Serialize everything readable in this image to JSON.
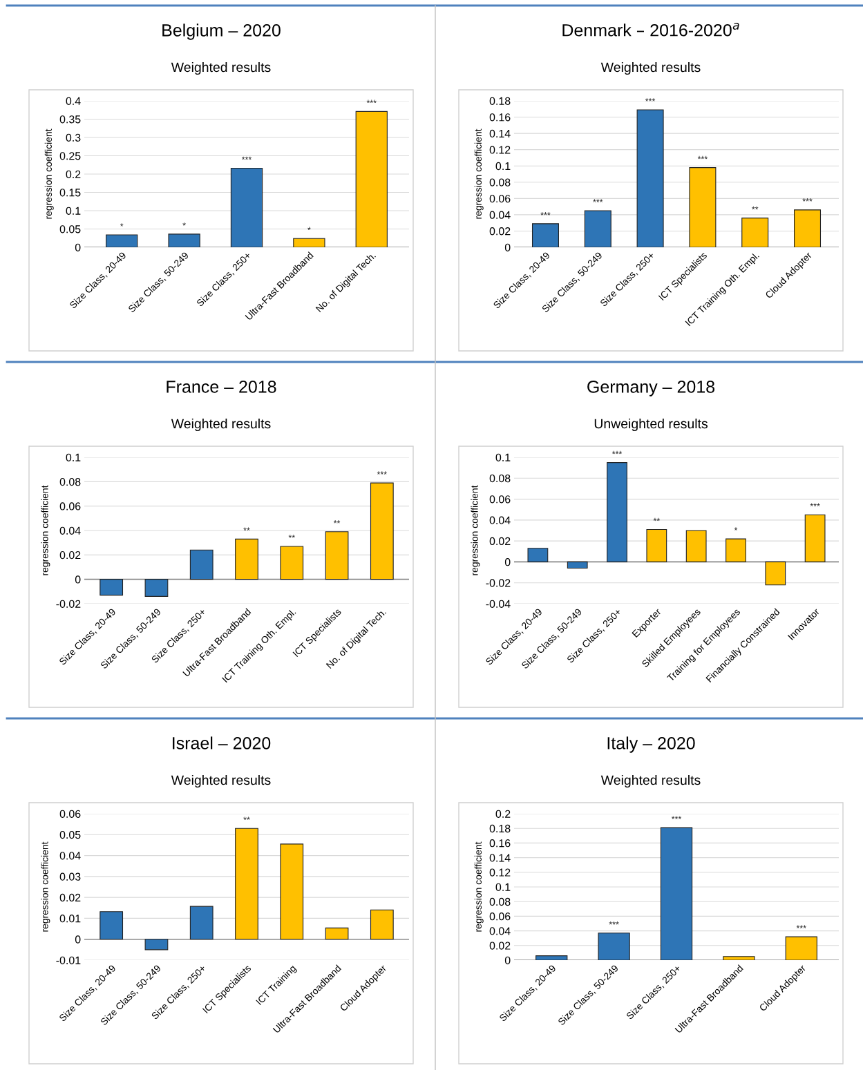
{
  "chart_data": [
    {
      "type": "bar",
      "title": "Belgium – 2020",
      "subtitle": "Weighted results",
      "ylabel": "regression coefficient",
      "categories": [
        "Size Class, 20-49",
        "Size Class, 50-249",
        "Size Class, 250+",
        "Ultra-Fast Broadband",
        "No. of Digital Tech."
      ],
      "values": [
        0.034,
        0.036,
        0.216,
        0.024,
        0.371
      ],
      "colors": [
        "#2e75b6",
        "#2e75b6",
        "#2e75b6",
        "#ffc000",
        "#ffc000"
      ],
      "value_labels": [
        "*",
        "*",
        "***",
        "*",
        "***"
      ],
      "ylim": [
        0,
        0.4
      ],
      "yticks": [
        0,
        0.05,
        0.1,
        0.15,
        0.2,
        0.25,
        0.3,
        0.35,
        0.4
      ],
      "grid": "y"
    },
    {
      "type": "bar",
      "title": "Denmark – 2016-2020$^{a}$",
      "subtitle": "Weighted results",
      "ylabel": "regression coefficient",
      "categories": [
        "Size Class, 20-49",
        "Size Class, 50-249",
        "Size Class, 250+",
        "ICT Specialists",
        "ICT Training Oth. Empl.",
        "Cloud Adopter"
      ],
      "values": [
        0.029,
        0.045,
        0.169,
        0.098,
        0.036,
        0.046
      ],
      "colors": [
        "#2e75b6",
        "#2e75b6",
        "#2e75b6",
        "#ffc000",
        "#ffc000",
        "#ffc000"
      ],
      "value_labels": [
        "***",
        "***",
        "***",
        "***",
        "**",
        "***"
      ],
      "ylim": [
        0,
        0.18
      ],
      "yticks": [
        0,
        0.02,
        0.04,
        0.06,
        0.08,
        0.1,
        0.12,
        0.14,
        0.16,
        0.18
      ],
      "grid": "y"
    },
    {
      "type": "bar",
      "title": "France – 2018",
      "subtitle": "Weighted results",
      "ylabel": "regression coefficient",
      "categories": [
        "Size Class, 20-49",
        "Size Class, 50-249",
        "Size Class, 250+",
        "Ultra-Fast Broadband",
        "ICT Training Oth. Empl.",
        "ICT Specialists",
        "No. of Digital Tech."
      ],
      "values": [
        -0.013,
        -0.014,
        0.024,
        0.033,
        0.027,
        0.039,
        0.079
      ],
      "colors": [
        "#2e75b6",
        "#2e75b6",
        "#2e75b6",
        "#ffc000",
        "#ffc000",
        "#ffc000",
        "#ffc000"
      ],
      "value_labels": [
        null,
        null,
        null,
        "**",
        "**",
        "**",
        "***"
      ],
      "ylim": [
        -0.02,
        0.1
      ],
      "yticks": [
        -0.02,
        0,
        0.02,
        0.04,
        0.06,
        0.08,
        0.1
      ],
      "grid": "y"
    },
    {
      "type": "bar",
      "title": "Germany – 2018",
      "subtitle": "Unweighted results",
      "ylabel": "regression coefficient",
      "categories": [
        "Size Class, 20-49",
        "Size Class, 50-249",
        "Size Class, 250+",
        "Exporter",
        "Skilled Employees",
        "Training for Employees",
        "Financially Constrained",
        "Innovator"
      ],
      "values": [
        0.013,
        -0.006,
        0.095,
        0.031,
        0.03,
        0.022,
        -0.022,
        0.045
      ],
      "colors": [
        "#2e75b6",
        "#2e75b6",
        "#2e75b6",
        "#ffc000",
        "#ffc000",
        "#ffc000",
        "#ffc000",
        "#ffc000"
      ],
      "value_labels": [
        null,
        null,
        "***",
        "**",
        null,
        "*",
        null,
        "***"
      ],
      "ylim": [
        -0.04,
        0.1
      ],
      "yticks": [
        -0.04,
        -0.02,
        0,
        0.02,
        0.04,
        0.06,
        0.08,
        0.1
      ],
      "grid": "y"
    },
    {
      "type": "bar",
      "title": "Israel – 2020",
      "subtitle": "Weighted results",
      "ylabel": "regression coefficient",
      "categories": [
        "Size Class, 20-49",
        "Size Class, 50-249",
        "Size Class, 250+",
        "ICT Specialists",
        "ICT Training",
        "Ultra-Fast Broadband",
        "Cloud Adopter"
      ],
      "values": [
        0.0132,
        -0.005,
        0.0157,
        0.053,
        0.0455,
        0.0054,
        0.014
      ],
      "colors": [
        "#2e75b6",
        "#2e75b6",
        "#2e75b6",
        "#ffc000",
        "#ffc000",
        "#ffc000",
        "#ffc000"
      ],
      "value_labels": [
        null,
        null,
        null,
        "**",
        null,
        null,
        null
      ],
      "ylim": [
        -0.01,
        0.06
      ],
      "yticks": [
        -0.01,
        0,
        0.01,
        0.02,
        0.03,
        0.04,
        0.05,
        0.06
      ],
      "grid": "y"
    },
    {
      "type": "bar",
      "title": "Italy – 2020",
      "subtitle": "Weighted results",
      "ylabel": "regression coefficient",
      "categories": [
        "Size Class, 20-49",
        "Size Class, 50-249",
        "Size Class, 250+",
        "Ultra-Fast Broadband",
        "Cloud Adopter"
      ],
      "values": [
        0.006,
        0.037,
        0.181,
        0.005,
        0.032
      ],
      "colors": [
        "#2e75b6",
        "#2e75b6",
        "#2e75b6",
        "#ffc000",
        "#ffc000"
      ],
      "value_labels": [
        null,
        "***",
        "***",
        null,
        "***"
      ],
      "ylim": [
        0,
        0.2
      ],
      "yticks": [
        0,
        0.02,
        0.04,
        0.06,
        0.08,
        0.1,
        0.12,
        0.14,
        0.16,
        0.18,
        0.2
      ],
      "grid": "y"
    }
  ]
}
